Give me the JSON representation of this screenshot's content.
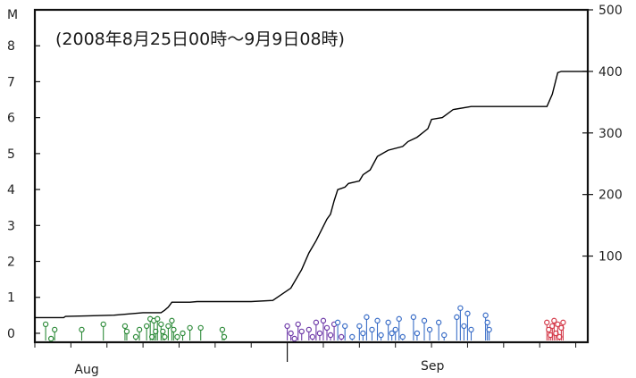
{
  "chart_data": {
    "type": "line",
    "title": "(2008年8月25日00時～9月9日08時)",
    "left_axis": {
      "label": "M",
      "ticks": [
        "0",
        "1",
        "2",
        "3",
        "4",
        "5",
        "6",
        "7",
        "8"
      ],
      "ylim": [
        -0.25,
        9
      ]
    },
    "right_axis": {
      "label": "",
      "ticks": [
        "100",
        "200",
        "300",
        "400",
        "500"
      ],
      "ylim": [
        -40,
        500
      ]
    },
    "x_axis": {
      "labels": [
        "Aug",
        "Sep"
      ],
      "xlim_days": [
        25.0,
        40.333
      ]
    },
    "cumulative_count_series": {
      "name": "",
      "axis": "right",
      "color": "#000000",
      "points": [
        [
          25.0,
          0
        ],
        [
          25.8,
          0
        ],
        [
          25.85,
          2
        ],
        [
          26.5,
          3
        ],
        [
          27.2,
          4
        ],
        [
          27.6,
          6
        ],
        [
          28.0,
          8
        ],
        [
          28.5,
          8
        ],
        [
          28.6,
          12
        ],
        [
          28.7,
          17
        ],
        [
          28.8,
          25
        ],
        [
          29.3,
          25
        ],
        [
          29.5,
          26
        ],
        [
          31.0,
          26
        ],
        [
          31.6,
          28
        ],
        [
          32.1,
          48
        ],
        [
          32.4,
          78
        ],
        [
          32.6,
          105
        ],
        [
          32.8,
          125
        ],
        [
          33.1,
          160
        ],
        [
          33.2,
          168
        ],
        [
          33.3,
          190
        ],
        [
          33.4,
          208
        ],
        [
          33.6,
          212
        ],
        [
          33.7,
          218
        ],
        [
          34.0,
          222
        ],
        [
          34.1,
          232
        ],
        [
          34.3,
          240
        ],
        [
          34.5,
          262
        ],
        [
          34.8,
          272
        ],
        [
          35.2,
          278
        ],
        [
          35.35,
          286
        ],
        [
          35.6,
          293
        ],
        [
          35.9,
          307
        ],
        [
          36.0,
          322
        ],
        [
          36.3,
          325
        ],
        [
          36.6,
          338
        ],
        [
          37.1,
          343
        ],
        [
          38.8,
          343
        ],
        [
          39.2,
          343
        ],
        [
          39.35,
          363
        ],
        [
          39.5,
          398
        ],
        [
          39.6,
          400
        ],
        [
          40.333,
          400
        ]
      ]
    },
    "magnitude_stems": [
      {
        "day": 25.3,
        "m": 0.25,
        "color": "#2e8b3a"
      },
      {
        "day": 25.45,
        "m": -0.15,
        "color": "#2e8b3a"
      },
      {
        "day": 25.55,
        "m": 0.1,
        "color": "#2e8b3a"
      },
      {
        "day": 26.3,
        "m": 0.1,
        "color": "#2e8b3a"
      },
      {
        "day": 26.9,
        "m": 0.25,
        "color": "#2e8b3a"
      },
      {
        "day": 27.5,
        "m": 0.2,
        "color": "#2e8b3a"
      },
      {
        "day": 27.55,
        "m": 0.05,
        "color": "#2e8b3a"
      },
      {
        "day": 27.8,
        "m": -0.1,
        "color": "#2e8b3a"
      },
      {
        "day": 27.9,
        "m": 0.1,
        "color": "#2e8b3a"
      },
      {
        "day": 28.1,
        "m": 0.2,
        "color": "#2e8b3a"
      },
      {
        "day": 28.2,
        "m": 0.4,
        "color": "#2e8b3a"
      },
      {
        "day": 28.25,
        "m": -0.1,
        "color": "#2e8b3a"
      },
      {
        "day": 28.3,
        "m": 0.35,
        "color": "#2e8b3a"
      },
      {
        "day": 28.35,
        "m": 0.05,
        "color": "#2e8b3a"
      },
      {
        "day": 28.4,
        "m": 0.4,
        "color": "#2e8b3a"
      },
      {
        "day": 28.5,
        "m": 0.25,
        "color": "#2e8b3a"
      },
      {
        "day": 28.55,
        "m": 0.05,
        "color": "#2e8b3a"
      },
      {
        "day": 28.6,
        "m": -0.1,
        "color": "#2e8b3a"
      },
      {
        "day": 28.7,
        "m": 0.2,
        "color": "#2e8b3a"
      },
      {
        "day": 28.8,
        "m": 0.35,
        "color": "#2e8b3a"
      },
      {
        "day": 28.85,
        "m": 0.1,
        "color": "#2e8b3a"
      },
      {
        "day": 28.95,
        "m": -0.1,
        "color": "#2e8b3a"
      },
      {
        "day": 29.1,
        "m": 0.0,
        "color": "#2e8b3a"
      },
      {
        "day": 29.3,
        "m": 0.15,
        "color": "#2e8b3a"
      },
      {
        "day": 29.6,
        "m": 0.15,
        "color": "#2e8b3a"
      },
      {
        "day": 30.2,
        "m": 0.1,
        "color": "#2e8b3a"
      },
      {
        "day": 30.25,
        "m": -0.1,
        "color": "#2e8b3a"
      },
      {
        "day": 32.0,
        "m": 0.2,
        "color": "#6e3aa8"
      },
      {
        "day": 32.1,
        "m": 0.0,
        "color": "#6e3aa8"
      },
      {
        "day": 32.2,
        "m": -0.15,
        "color": "#6e3aa8"
      },
      {
        "day": 32.3,
        "m": 0.25,
        "color": "#6e3aa8"
      },
      {
        "day": 32.4,
        "m": 0.05,
        "color": "#6e3aa8"
      },
      {
        "day": 32.6,
        "m": 0.1,
        "color": "#6e3aa8"
      },
      {
        "day": 32.7,
        "m": -0.1,
        "color": "#6e3aa8"
      },
      {
        "day": 32.8,
        "m": 0.3,
        "color": "#6e3aa8"
      },
      {
        "day": 32.9,
        "m": 0.0,
        "color": "#6e3aa8"
      },
      {
        "day": 33.0,
        "m": 0.35,
        "color": "#6e3aa8"
      },
      {
        "day": 33.1,
        "m": 0.15,
        "color": "#6e3aa8"
      },
      {
        "day": 33.2,
        "m": -0.05,
        "color": "#6e3aa8"
      },
      {
        "day": 33.3,
        "m": 0.25,
        "color": "#6e3aa8"
      },
      {
        "day": 33.4,
        "m": 0.3,
        "color": "#3b6ec7"
      },
      {
        "day": 33.5,
        "m": -0.1,
        "color": "#6e3aa8"
      },
      {
        "day": 33.6,
        "m": 0.2,
        "color": "#3b6ec7"
      },
      {
        "day": 33.8,
        "m": -0.1,
        "color": "#3b6ec7"
      },
      {
        "day": 34.0,
        "m": 0.2,
        "color": "#3b6ec7"
      },
      {
        "day": 34.1,
        "m": 0.0,
        "color": "#3b6ec7"
      },
      {
        "day": 34.2,
        "m": 0.45,
        "color": "#3b6ec7"
      },
      {
        "day": 34.35,
        "m": 0.1,
        "color": "#3b6ec7"
      },
      {
        "day": 34.5,
        "m": 0.35,
        "color": "#3b6ec7"
      },
      {
        "day": 34.6,
        "m": -0.05,
        "color": "#3b6ec7"
      },
      {
        "day": 34.8,
        "m": 0.3,
        "color": "#3b6ec7"
      },
      {
        "day": 34.9,
        "m": 0.0,
        "color": "#3b6ec7"
      },
      {
        "day": 35.0,
        "m": 0.1,
        "color": "#3b6ec7"
      },
      {
        "day": 35.1,
        "m": 0.4,
        "color": "#3b6ec7"
      },
      {
        "day": 35.2,
        "m": -0.1,
        "color": "#3b6ec7"
      },
      {
        "day": 35.5,
        "m": 0.45,
        "color": "#3b6ec7"
      },
      {
        "day": 35.6,
        "m": 0.0,
        "color": "#3b6ec7"
      },
      {
        "day": 35.8,
        "m": 0.35,
        "color": "#3b6ec7"
      },
      {
        "day": 35.95,
        "m": 0.1,
        "color": "#3b6ec7"
      },
      {
        "day": 36.2,
        "m": 0.3,
        "color": "#3b6ec7"
      },
      {
        "day": 36.35,
        "m": -0.05,
        "color": "#3b6ec7"
      },
      {
        "day": 36.7,
        "m": 0.45,
        "color": "#3b6ec7"
      },
      {
        "day": 36.8,
        "m": 0.7,
        "color": "#3b6ec7"
      },
      {
        "day": 36.9,
        "m": 0.2,
        "color": "#3b6ec7"
      },
      {
        "day": 37.0,
        "m": 0.55,
        "color": "#3b6ec7"
      },
      {
        "day": 37.1,
        "m": 0.1,
        "color": "#3b6ec7"
      },
      {
        "day": 37.5,
        "m": 0.5,
        "color": "#3b6ec7"
      },
      {
        "day": 37.55,
        "m": 0.3,
        "color": "#3b6ec7"
      },
      {
        "day": 37.6,
        "m": 0.1,
        "color": "#3b6ec7"
      },
      {
        "day": 39.2,
        "m": 0.3,
        "color": "#d43a4a"
      },
      {
        "day": 39.25,
        "m": 0.1,
        "color": "#d43a4a"
      },
      {
        "day": 39.3,
        "m": -0.05,
        "color": "#d43a4a"
      },
      {
        "day": 39.35,
        "m": 0.2,
        "color": "#d43a4a"
      },
      {
        "day": 39.4,
        "m": 0.35,
        "color": "#d43a4a"
      },
      {
        "day": 39.45,
        "m": 0.0,
        "color": "#d43a4a"
      },
      {
        "day": 39.5,
        "m": 0.25,
        "color": "#d43a4a"
      },
      {
        "day": 39.55,
        "m": -0.1,
        "color": "#d43a4a"
      },
      {
        "day": 39.6,
        "m": 0.15,
        "color": "#d43a4a"
      },
      {
        "day": 39.65,
        "m": 0.3,
        "color": "#d43a4a"
      }
    ],
    "grid": false
  }
}
